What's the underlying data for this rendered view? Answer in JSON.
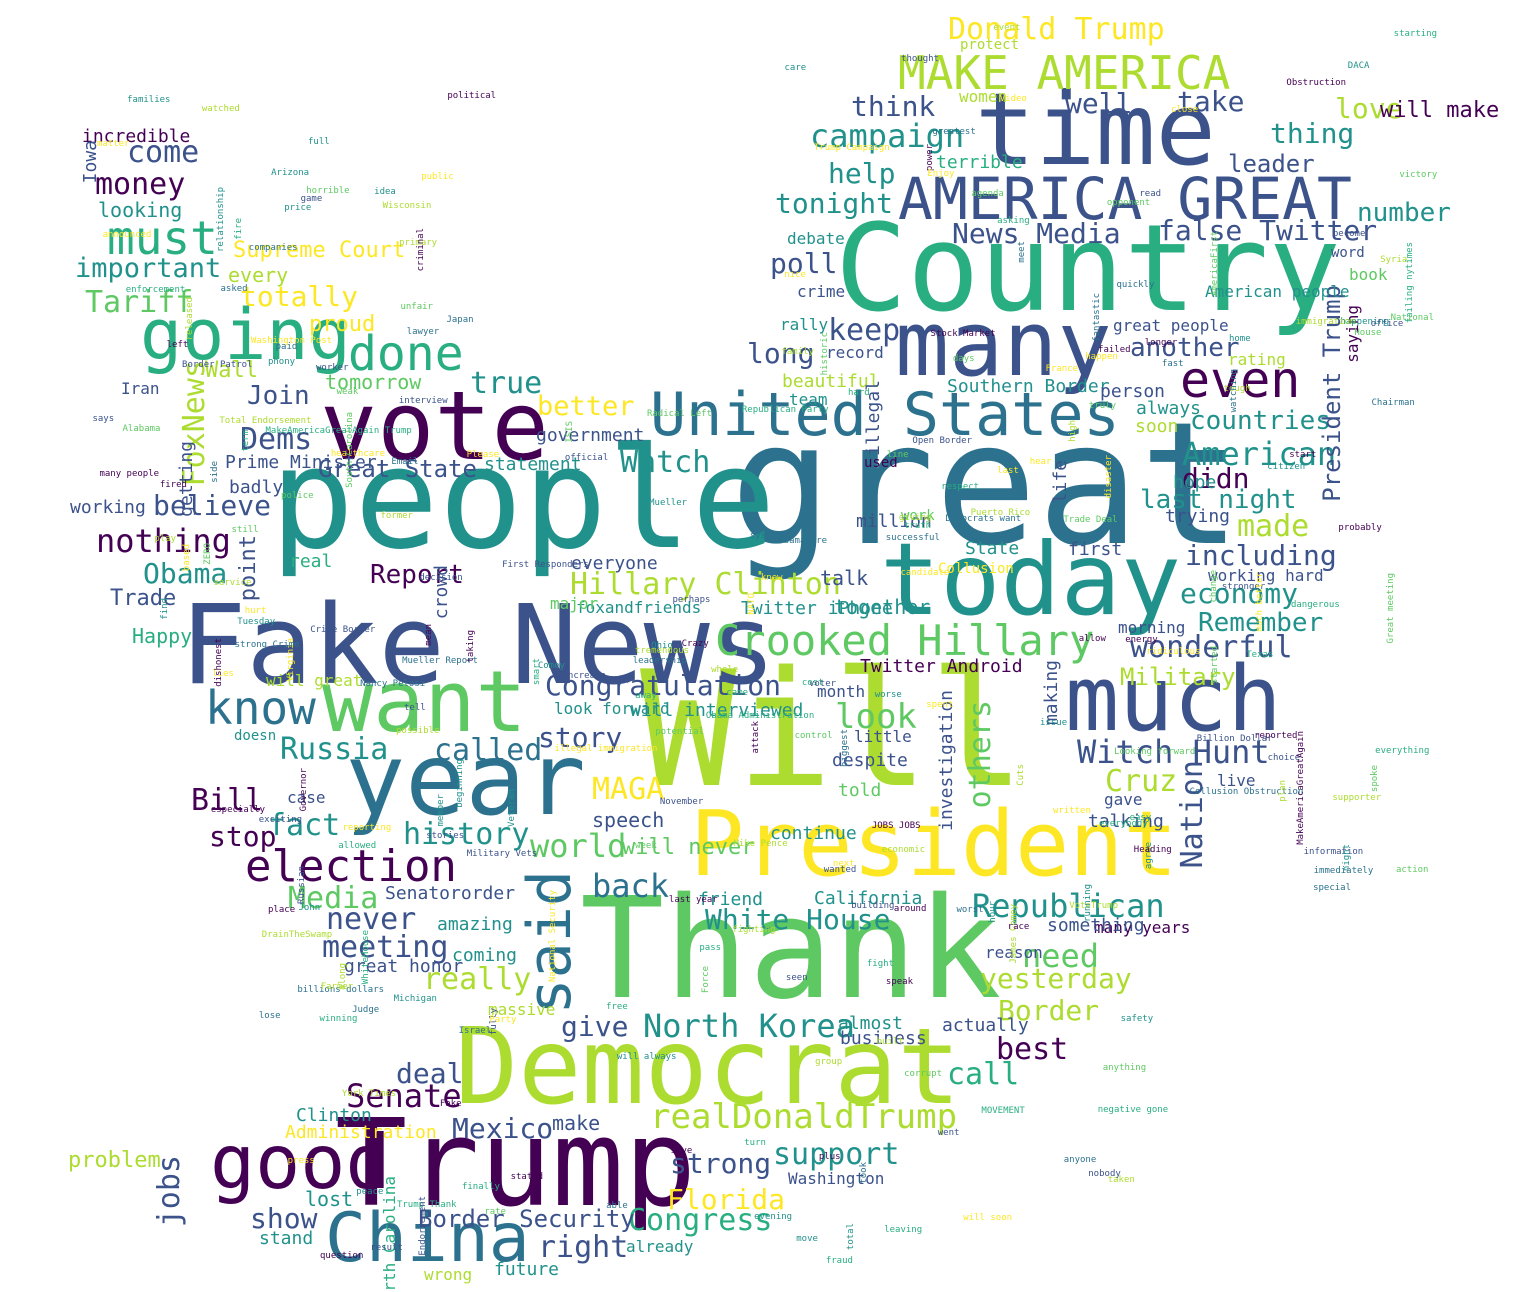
{
  "palette": {
    "dark_purple": "#440154",
    "indigo": "#3b528b",
    "blue": "#2c728e",
    "teal": "#21918c",
    "green": "#28ae80",
    "light_green": "#5ec962",
    "lime": "#addc30",
    "yellow": "#fde725"
  },
  "words": [
    {
      "text": "Will",
      "color": "lime"
    },
    {
      "text": "great",
      "color": "blue"
    },
    {
      "text": "people",
      "color": "teal"
    },
    {
      "text": "Thank",
      "color": "light_green"
    },
    {
      "text": "Country",
      "color": "green"
    },
    {
      "text": "Fake News",
      "color": "indigo"
    },
    {
      "text": "Trump",
      "color": "dark_purple"
    },
    {
      "text": "Democrat",
      "color": "lime"
    },
    {
      "text": "time",
      "color": "indigo"
    },
    {
      "text": "President",
      "color": "yellow"
    },
    {
      "text": "today",
      "color": "teal"
    },
    {
      "text": "vote",
      "color": "dark_purple"
    },
    {
      "text": "year",
      "color": "blue"
    },
    {
      "text": "much",
      "color": "indigo"
    },
    {
      "text": "many",
      "color": "indigo"
    },
    {
      "text": "want",
      "color": "light_green"
    },
    {
      "text": "China",
      "color": "blue"
    },
    {
      "text": "good",
      "color": "dark_purple"
    },
    {
      "text": "United States",
      "color": "blue"
    },
    {
      "text": "AMERICA GREAT",
      "color": "indigo"
    },
    {
      "text": "going",
      "color": "green"
    },
    {
      "text": "Crooked Hillary",
      "color": "light_green"
    },
    {
      "text": "election",
      "color": "dark_purple"
    },
    {
      "text": "even",
      "color": "dark_purple"
    },
    {
      "text": "MAKE AMERICA",
      "color": "lime"
    },
    {
      "text": "said",
      "color": "blue"
    },
    {
      "text": "realDonaldTrump",
      "color": "lime"
    },
    {
      "text": "know",
      "color": "blue"
    },
    {
      "text": "must",
      "color": "green"
    },
    {
      "text": "done",
      "color": "green"
    },
    {
      "text": "Republican",
      "color": "teal"
    },
    {
      "text": "Hillary Clinton",
      "color": "lime"
    },
    {
      "text": "Witch Hunt",
      "color": "indigo"
    },
    {
      "text": "Congratulation",
      "color": "indigo"
    },
    {
      "text": "North Korea",
      "color": "teal"
    },
    {
      "text": "White House",
      "color": "teal"
    },
    {
      "text": "campaign",
      "color": "teal"
    },
    {
      "text": "Donald Trump",
      "color": "yellow"
    },
    {
      "text": "American",
      "color": "teal"
    },
    {
      "text": "false Twitter",
      "color": "indigo"
    },
    {
      "text": "News Media",
      "color": "indigo"
    },
    {
      "text": "countries",
      "color": "teal"
    },
    {
      "text": "wonderful",
      "color": "indigo"
    },
    {
      "text": "economy",
      "color": "teal"
    },
    {
      "text": "including",
      "color": "indigo"
    },
    {
      "text": "tonight",
      "color": "teal"
    },
    {
      "text": "Senate",
      "color": "dark_purple"
    },
    {
      "text": "Mexico",
      "color": "indigo"
    },
    {
      "text": "Florida",
      "color": "yellow"
    },
    {
      "text": "Congress",
      "color": "green"
    },
    {
      "text": "Border Security",
      "color": "indigo"
    },
    {
      "text": "Tariff",
      "color": "light_green"
    },
    {
      "text": "money",
      "color": "dark_purple"
    },
    {
      "text": "come",
      "color": "indigo"
    },
    {
      "text": "important",
      "color": "teal"
    },
    {
      "text": "totally",
      "color": "yellow"
    },
    {
      "text": "nothing",
      "color": "dark_purple"
    },
    {
      "text": "Obama",
      "color": "teal"
    },
    {
      "text": "believe",
      "color": "indigo"
    },
    {
      "text": "Dems",
      "color": "indigo"
    },
    {
      "text": "Join",
      "color": "indigo"
    },
    {
      "text": "Great State",
      "color": "indigo"
    },
    {
      "text": "Report",
      "color": "dark_purple"
    },
    {
      "text": "Media",
      "color": "light_green"
    },
    {
      "text": "meeting",
      "color": "indigo"
    },
    {
      "text": "never",
      "color": "indigo"
    },
    {
      "text": "history",
      "color": "teal"
    },
    {
      "text": "world",
      "color": "light_green"
    },
    {
      "text": "back",
      "color": "blue"
    },
    {
      "text": "fact",
      "color": "teal"
    },
    {
      "text": "Bill",
      "color": "dark_purple"
    },
    {
      "text": "stop",
      "color": "dark_purple"
    },
    {
      "text": "Russia",
      "color": "teal"
    },
    {
      "text": "called",
      "color": "blue"
    },
    {
      "text": "story",
      "color": "indigo"
    },
    {
      "text": "MAGA",
      "color": "yellow"
    },
    {
      "text": "look",
      "color": "light_green"
    },
    {
      "text": "true",
      "color": "teal"
    },
    {
      "text": "better",
      "color": "yellow"
    },
    {
      "text": "Watch",
      "color": "teal"
    },
    {
      "text": "keep",
      "color": "indigo"
    },
    {
      "text": "long",
      "color": "indigo"
    },
    {
      "text": "poll",
      "color": "indigo"
    },
    {
      "text": "help",
      "color": "teal"
    },
    {
      "text": "think",
      "color": "indigo"
    },
    {
      "text": "well",
      "color": "indigo"
    },
    {
      "text": "take",
      "color": "indigo"
    },
    {
      "text": "thing",
      "color": "teal"
    },
    {
      "text": "love",
      "color": "lime"
    },
    {
      "text": "leader",
      "color": "indigo"
    },
    {
      "text": "number",
      "color": "teal"
    },
    {
      "text": "another",
      "color": "indigo"
    },
    {
      "text": "didn",
      "color": "dark_purple"
    },
    {
      "text": "made",
      "color": "lime"
    },
    {
      "text": "last night",
      "color": "teal"
    },
    {
      "text": "Remember",
      "color": "teal"
    },
    {
      "text": "Military",
      "color": "lime"
    },
    {
      "text": "Cruz",
      "color": "lime"
    },
    {
      "text": "Nation",
      "color": "indigo"
    },
    {
      "text": "need",
      "color": "light_green"
    },
    {
      "text": "yesterday",
      "color": "lime"
    },
    {
      "text": "Border",
      "color": "lime"
    },
    {
      "text": "best",
      "color": "dark_purple"
    },
    {
      "text": "call",
      "color": "green"
    },
    {
      "text": "support",
      "color": "teal"
    },
    {
      "text": "strong",
      "color": "indigo"
    },
    {
      "text": "right",
      "color": "indigo"
    },
    {
      "text": "show",
      "color": "indigo"
    },
    {
      "text": "jobs",
      "color": "indigo"
    },
    {
      "text": "problem",
      "color": "lime"
    },
    {
      "text": "deal",
      "color": "indigo"
    },
    {
      "text": "give",
      "color": "indigo"
    },
    {
      "text": "really",
      "color": "lime"
    },
    {
      "text": "others",
      "color": "light_green"
    },
    {
      "text": "President Trump",
      "color": "indigo"
    },
    {
      "text": "FoxNews",
      "color": "lime"
    },
    {
      "text": "Wall",
      "color": "lime"
    },
    {
      "text": "Trade",
      "color": "indigo"
    },
    {
      "text": "Happy",
      "color": "green"
    },
    {
      "text": "point",
      "color": "indigo"
    },
    {
      "text": "every",
      "color": "lime"
    },
    {
      "text": "Supreme Court",
      "color": "yellow"
    },
    {
      "text": "proud",
      "color": "yellow"
    },
    {
      "text": "tomorrow",
      "color": "light_green"
    },
    {
      "text": "looking",
      "color": "teal"
    },
    {
      "text": "incredible",
      "color": "dark_purple"
    },
    {
      "text": "Iowa",
      "color": "indigo"
    },
    {
      "text": "beautiful",
      "color": "lime"
    },
    {
      "text": "Southern Border",
      "color": "teal"
    },
    {
      "text": "government",
      "color": "indigo"
    },
    {
      "text": "statement",
      "color": "teal"
    },
    {
      "text": "everyone",
      "color": "indigo"
    },
    {
      "text": "will interviewed",
      "color": "teal"
    },
    {
      "text": "Twitter Android",
      "color": "dark_purple"
    },
    {
      "text": "foxandfriends",
      "color": "teal"
    },
    {
      "text": "Twitter iPhone",
      "color": "teal"
    },
    {
      "text": "together",
      "color": "teal"
    },
    {
      "text": "talk",
      "color": "indigo"
    },
    {
      "text": "State",
      "color": "teal"
    },
    {
      "text": "first",
      "color": "indigo"
    },
    {
      "text": "continue",
      "color": "teal"
    },
    {
      "text": "will never",
      "color": "light_green"
    },
    {
      "text": "speech",
      "color": "indigo"
    },
    {
      "text": "friend",
      "color": "teal"
    },
    {
      "text": "California",
      "color": "teal"
    },
    {
      "text": "Senatororder",
      "color": "indigo"
    },
    {
      "text": "great honor",
      "color": "indigo"
    },
    {
      "text": "amazing",
      "color": "teal"
    },
    {
      "text": "coming",
      "color": "teal"
    },
    {
      "text": "massive",
      "color": "lime"
    },
    {
      "text": "almost",
      "color": "teal"
    },
    {
      "text": "business",
      "color": "indigo"
    },
    {
      "text": "actually",
      "color": "indigo"
    },
    {
      "text": "make",
      "color": "indigo"
    },
    {
      "text": "Clinton",
      "color": "teal"
    },
    {
      "text": "Administration",
      "color": "yellow"
    },
    {
      "text": "lost",
      "color": "teal"
    },
    {
      "text": "stand",
      "color": "teal"
    },
    {
      "text": "wrong",
      "color": "lime"
    },
    {
      "text": "future",
      "color": "teal"
    },
    {
      "text": "already",
      "color": "teal"
    },
    {
      "text": "Washington",
      "color": "indigo"
    },
    {
      "text": "many years",
      "color": "dark_purple"
    },
    {
      "text": "something",
      "color": "indigo"
    },
    {
      "text": "reason",
      "color": "indigo"
    },
    {
      "text": "gave",
      "color": "indigo"
    },
    {
      "text": "talking",
      "color": "indigo"
    },
    {
      "text": "live",
      "color": "indigo"
    },
    {
      "text": "hope",
      "color": "teal"
    },
    {
      "text": "trying",
      "color": "indigo"
    },
    {
      "text": "person",
      "color": "indigo"
    },
    {
      "text": "always",
      "color": "teal"
    },
    {
      "text": "soon",
      "color": "lime"
    },
    {
      "text": "rating",
      "color": "lime"
    },
    {
      "text": "saying",
      "color": "dark_purple"
    },
    {
      "text": "great people",
      "color": "indigo"
    },
    {
      "text": "American people",
      "color": "teal"
    },
    {
      "text": "book",
      "color": "light_green"
    },
    {
      "text": "word",
      "color": "indigo"
    },
    {
      "text": "will make",
      "color": "dark_purple"
    },
    {
      "text": "women",
      "color": "lime"
    },
    {
      "text": "terrible",
      "color": "green"
    },
    {
      "text": "debate",
      "color": "teal"
    },
    {
      "text": "crime",
      "color": "indigo"
    },
    {
      "text": "rally",
      "color": "teal"
    },
    {
      "text": "record",
      "color": "indigo"
    },
    {
      "text": "team",
      "color": "teal"
    },
    {
      "text": "illegal",
      "color": "indigo"
    },
    {
      "text": "life",
      "color": "indigo"
    },
    {
      "text": "million",
      "color": "indigo"
    },
    {
      "text": "despite",
      "color": "indigo"
    },
    {
      "text": "little",
      "color": "indigo"
    },
    {
      "text": "told",
      "color": "light_green"
    },
    {
      "text": "making",
      "color": "indigo"
    },
    {
      "text": "investigation",
      "color": "indigo"
    },
    {
      "text": "will great",
      "color": "lime"
    },
    {
      "text": "look forward",
      "color": "teal"
    },
    {
      "text": "major",
      "color": "light_green"
    },
    {
      "text": "crowd",
      "color": "indigo"
    },
    {
      "text": "real",
      "color": "green"
    },
    {
      "text": "Prime Minister",
      "color": "indigo"
    },
    {
      "text": "badly",
      "color": "indigo"
    },
    {
      "text": "working",
      "color": "indigo"
    },
    {
      "text": "Iran",
      "color": "indigo"
    },
    {
      "text": "getting",
      "color": "indigo"
    },
    {
      "text": "case",
      "color": "indigo"
    },
    {
      "text": "doesn",
      "color": "teal"
    },
    {
      "text": "protect",
      "color": "lime"
    },
    {
      "text": "morning",
      "color": "indigo"
    },
    {
      "text": "month",
      "color": "indigo"
    },
    {
      "text": "North Carolina",
      "color": "green"
    },
    {
      "text": "working hard",
      "color": "indigo"
    },
    {
      "text": "used",
      "color": "dark_purple"
    },
    {
      "text": "work",
      "color": "light_green"
    },
    {
      "text": "Collusion",
      "color": "yellow"
    }
  ],
  "small_words": [
    "attack",
    "decision",
    "successful",
    "agree",
    "asking",
    "victory",
    "Syria",
    "next",
    "question",
    "tell",
    "billions dollars",
    "happening",
    "truth",
    "agenda",
    "play",
    "will soon",
    "Crazy",
    "stronger",
    "Japan",
    "phony",
    "everybody",
    "Alabama",
    "former",
    "happen",
    "many people",
    "choice",
    "lose",
    "John",
    "MOVEMENT",
    "AmericaFirst",
    "group",
    "Virginia",
    "taking",
    "fully",
    "greatest",
    "Tuesday",
    "pass",
    "days",
    "watched",
    "candidate",
    "plus",
    "information",
    "immediately",
    "Ohio",
    "fraud",
    "change",
    "Puerto Rico",
    "ridiculous",
    "fired",
    "Russian",
    "Nancy Pelosi",
    "care",
    "allowed",
    "truly",
    "giving",
    "healthcare",
    "MakeAmericaGreatAgain",
    "Crime Border",
    "leadership",
    "families",
    "Obama Administration",
    "still",
    "DrainTheSwamp",
    "Please",
    "allow",
    "went",
    "able",
    "idea",
    "leaving",
    "ISIS",
    "supporter",
    "France",
    "place",
    "Open Border",
    "biggest",
    "will always",
    "cost",
    "police",
    "taken",
    "much better",
    "start",
    "official",
    "Collusion Obstruction",
    "find",
    "Republican Party",
    "control",
    "economic",
    "NATO",
    "power",
    "First Responders",
    "took",
    "Veteran",
    "respect",
    "spoke",
    "James Comey",
    "public",
    "left",
    "voter",
    "side",
    "price",
    "term",
    "Radical Left",
    "whole",
    "last",
    "longer",
    "perhaps",
    "strong Crime",
    "Michigan",
    "WhiteHouse",
    "Force",
    "high",
    "knew",
    "last year",
    "interview",
    "special",
    "Mueller",
    "winning",
    "line",
    "service",
    "lies",
    "Stock Market",
    "office",
    "Democrats want",
    "relationship",
    "negative gone",
    "weak",
    "possible",
    "Washington Post",
    "dishonest",
    "building",
    "Chairman",
    "hour",
    "MakeAmericaGreatAgain Trump",
    "Looking forward",
    "primary",
    "Party",
    "stated",
    "says",
    "quickly",
    "issue",
    "hard",
    "anything",
    "Cuts",
    "hurt",
    "criminal",
    "worker",
    "meet",
    "full",
    "smart",
    "corrupt",
    "tremendous",
    "press",
    "mean",
    "exciting",
    "Judge",
    "citizen",
    "fight",
    "Trade Deal",
    "VoteTrump",
    "matter",
    "political",
    "Military Vets",
    "asked",
    "Arizona",
    "came",
    "horrible",
    "event",
    "Enjoy",
    "save",
    "seen",
    "companies",
    "beginning",
    "Trump Thank",
    "week",
    "Wisconsin",
    "based",
    "JOBS JOBS",
    "become",
    "ObamaCare",
    "safety",
    "finally",
    "action",
    "along",
    "illegal immigration",
    "reported",
    "game",
    "worst",
    "running",
    "Texas",
    "potential",
    "tough",
    "Trump Campaign",
    "probably",
    "November",
    "system",
    "DACA",
    "failing nytimes",
    "rate",
    "Total Endorsement",
    "spent",
    "energy",
    "wanted",
    "lawyer",
    "member",
    "enforcement",
    "Great meeting",
    "fighting",
    "Video",
    "race",
    "increase",
    "Email",
    "Comey",
    "starting",
    "historic",
    "Mike Pence",
    "reporting",
    "especially",
    "thought",
    "paid",
    "evening",
    "free",
    "unfair",
    "plan",
    "disaster",
    "Fake",
    "Billion Dollar",
    "Mueller Report",
    "night",
    "easy",
    "National",
    "released",
    "National Security",
    "Obstruction",
    "result",
    "anyone",
    "home",
    "everything",
    "House",
    "Farmer",
    "hear",
    "failed",
    "nobody",
    "fantastic",
    "worse",
    "dangerous",
    "ZERO",
    "built",
    "close",
    "Governor",
    "Endorsement",
    "Israel",
    "total",
    "turn",
    "opponent",
    "family",
    "written",
    "Heading",
    "read",
    "fast",
    "peace",
    "away",
    "started",
    "immigration",
    "announced",
    "around",
    "Border Patrol",
    "watching",
    "move",
    "fire",
    "South Carolina",
    "York Times",
    "nice",
    "speak",
    "stories"
  ]
}
